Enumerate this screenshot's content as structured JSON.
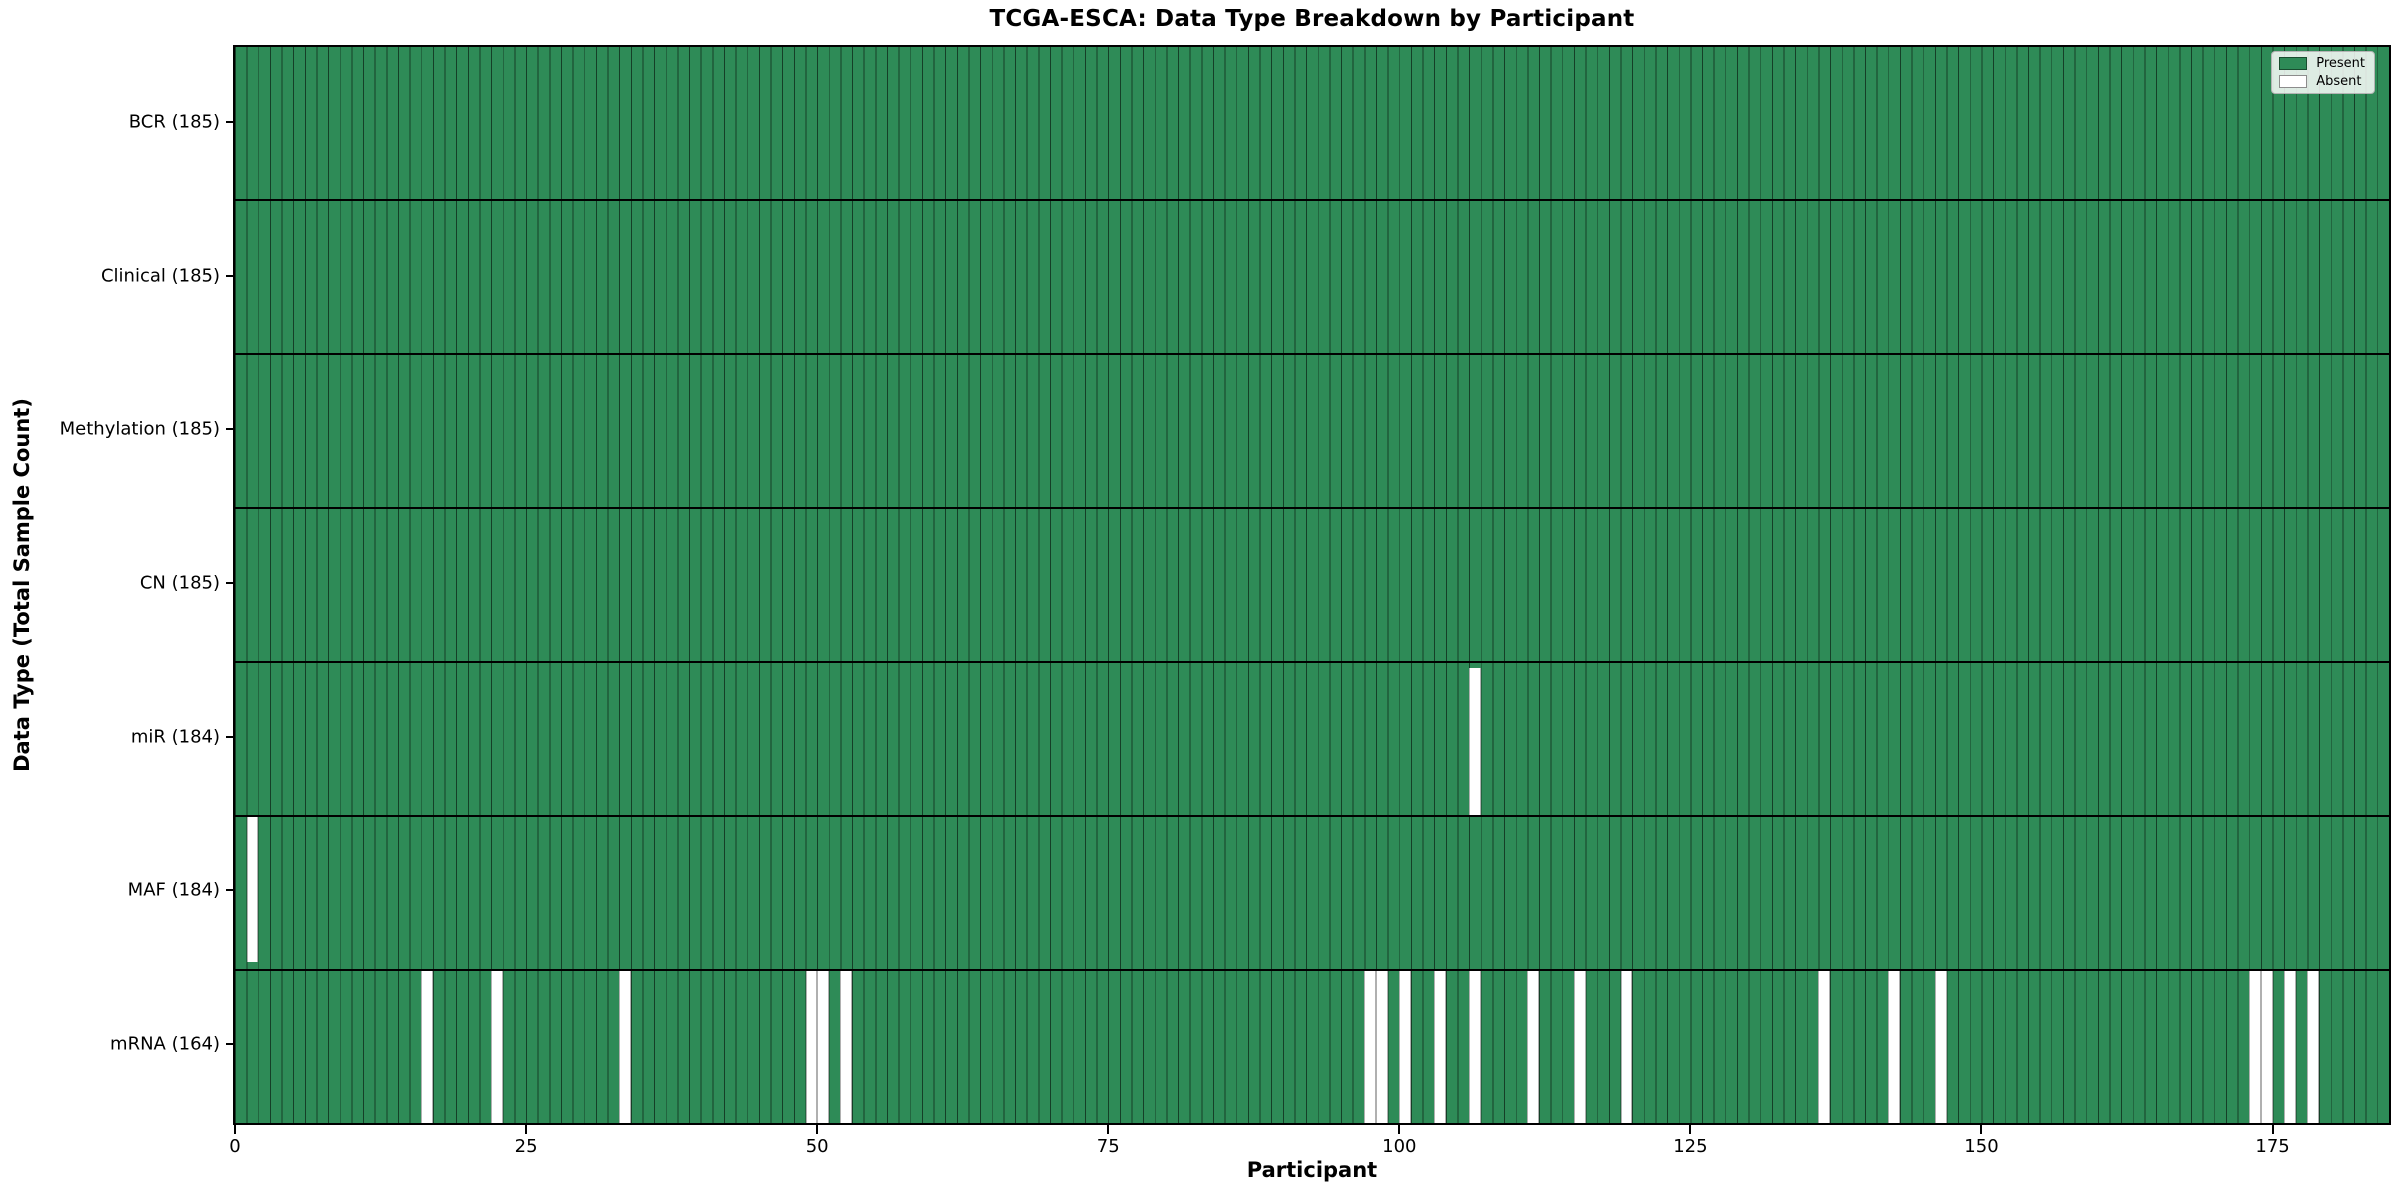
{
  "chart_data": {
    "type": "heatmap",
    "title": "TCGA-ESCA: Data Type Breakdown by Participant",
    "xlabel": "Participant",
    "ylabel": "Data Type (Total Sample Count)",
    "n_participants": 185,
    "xlim": [
      0,
      185
    ],
    "x_ticks": [
      0,
      25,
      50,
      75,
      100,
      125,
      150,
      175
    ],
    "grid": "per-column dark edge lines, black row separators",
    "legend": {
      "position": "upper right",
      "entries": [
        {
          "label": "Present",
          "color": "#2e8b57"
        },
        {
          "label": "Absent",
          "color": "#ffffff"
        }
      ]
    },
    "colors": {
      "present": "#2e8b57",
      "absent": "#ffffff",
      "edge": "#1a1a1a"
    },
    "rows": [
      {
        "label": "BCR (185)",
        "data_type": "BCR",
        "total_sample_count": 185,
        "absent_participants": []
      },
      {
        "label": "Clinical (185)",
        "data_type": "Clinical",
        "total_sample_count": 185,
        "absent_participants": []
      },
      {
        "label": "Methylation (185)",
        "data_type": "Methylation",
        "total_sample_count": 185,
        "absent_participants": []
      },
      {
        "label": "CN (185)",
        "data_type": "CN",
        "total_sample_count": 185,
        "absent_participants": []
      },
      {
        "label": "miR (184)",
        "data_type": "miR",
        "total_sample_count": 184,
        "absent_participants": [
          106
        ]
      },
      {
        "label": "MAF (184)",
        "data_type": "MAF",
        "total_sample_count": 184,
        "absent_participants": [
          1
        ]
      },
      {
        "label": "mRNA (164)",
        "data_type": "mRNA",
        "total_sample_count": 164,
        "absent_participants": [
          16,
          22,
          33,
          49,
          50,
          52,
          97,
          98,
          100,
          103,
          106,
          111,
          115,
          119,
          136,
          142,
          146,
          173,
          174,
          176,
          178
        ]
      }
    ]
  }
}
